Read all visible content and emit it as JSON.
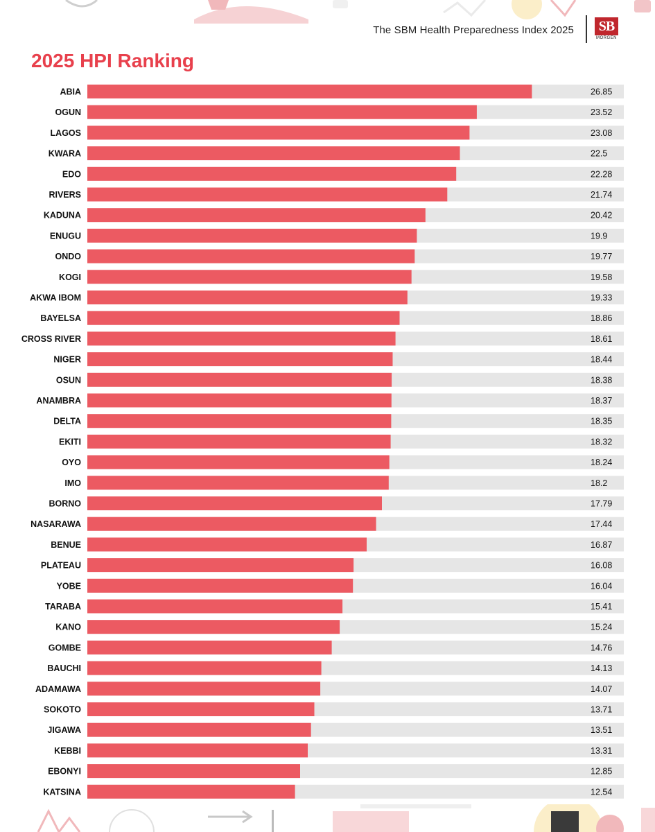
{
  "header": {
    "document_title": "The SBM Health Preparedness Index 2025",
    "logo_text": "SB",
    "logo_subtext": "MORGEN"
  },
  "colors": {
    "accent": "#e8404c",
    "bar": "#ec5a62",
    "track": "#e6e6e6"
  },
  "chart_data": {
    "type": "bar",
    "orientation": "horizontal",
    "title": "2025 HPI Ranking",
    "xlabel": "",
    "ylabel": "",
    "xlim": [
      0,
      32.4
    ],
    "grid": false,
    "categories": [
      "ABIA",
      "OGUN",
      "LAGOS",
      "KWARA",
      "EDO",
      "RIVERS",
      "KADUNA",
      "ENUGU",
      "ONDO",
      "KOGI",
      "AKWA IBOM",
      "BAYELSA",
      "CROSS RIVER",
      "NIGER",
      "OSUN",
      "ANAMBRA",
      "DELTA",
      "EKITI",
      "OYO",
      "IMO",
      "BORNO",
      "NASARAWA",
      "BENUE",
      "PLATEAU",
      "YOBE",
      "TARABA",
      "KANO",
      "GOMBE",
      "BAUCHI",
      "ADAMAWA",
      "SOKOTO",
      "JIGAWA",
      "KEBBI",
      "EBONYI",
      "KATSINA"
    ],
    "value_labels": [
      "26.85",
      "23.52",
      "23.08",
      "22.5",
      "22.28",
      "21.74",
      "20.42",
      "19.9",
      "19.77",
      "19.58",
      "19.33",
      "18.86",
      "18.61",
      "18.44",
      "18.38",
      "18.37",
      "18.35",
      "18.32",
      "18.24",
      "18.2",
      "17.79",
      "17.44",
      "16.87",
      "16.08",
      "16.04",
      "15.41",
      "15.24",
      "14.76",
      "14.13",
      "14.07",
      "13.71",
      "13.51",
      "13.31",
      "12.85",
      "12.54"
    ],
    "values": [
      26.85,
      23.52,
      23.08,
      22.5,
      22.28,
      21.74,
      20.42,
      19.9,
      19.77,
      19.58,
      19.33,
      18.86,
      18.61,
      18.44,
      18.38,
      18.37,
      18.35,
      18.32,
      18.24,
      18.2,
      17.79,
      17.44,
      16.87,
      16.08,
      16.04,
      15.41,
      15.24,
      14.76,
      14.13,
      14.07,
      13.71,
      13.51,
      13.31,
      12.85,
      12.54
    ]
  }
}
